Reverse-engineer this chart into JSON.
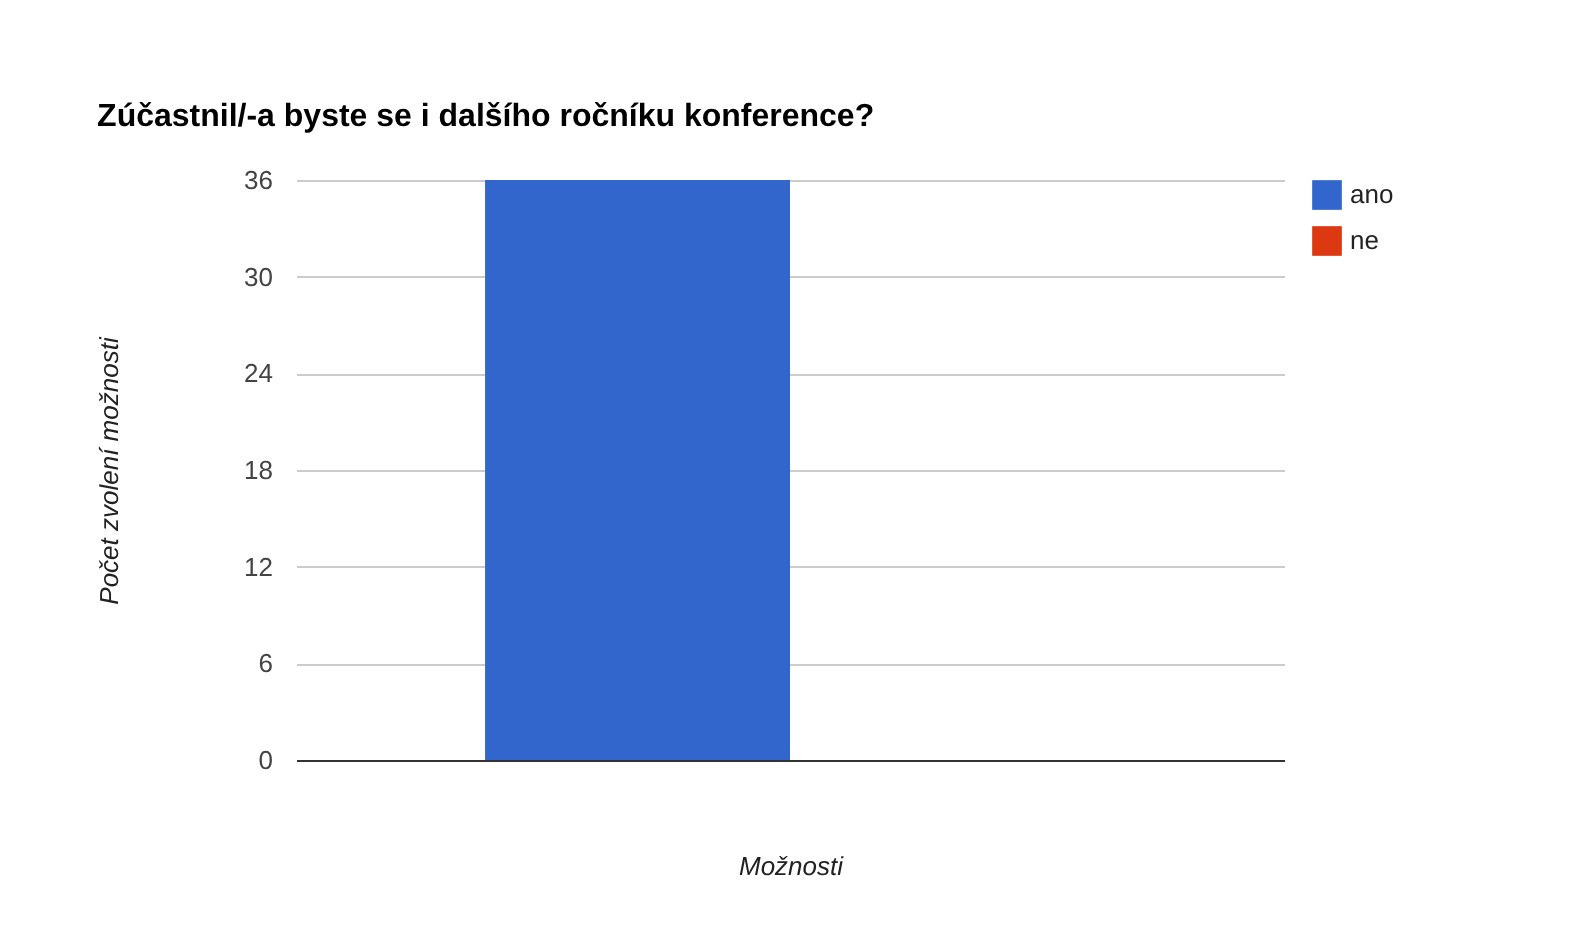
{
  "chart_data": {
    "type": "bar",
    "title": "Zúčastnil/-a byste se i dalšího ročníku konference?",
    "xlabel": "Možnosti",
    "ylabel": "Počet zvolení možnosti",
    "categories": [
      null
    ],
    "series": [
      {
        "name": "ano",
        "color": "#3366cc",
        "values": [
          36
        ]
      },
      {
        "name": "ne",
        "color": "#dc3912",
        "values": [
          0
        ]
      }
    ],
    "ylim": [
      0,
      36
    ],
    "yticks": [
      0,
      6,
      12,
      18,
      24,
      30,
      36
    ],
    "grid": "y",
    "legend": "top right"
  }
}
